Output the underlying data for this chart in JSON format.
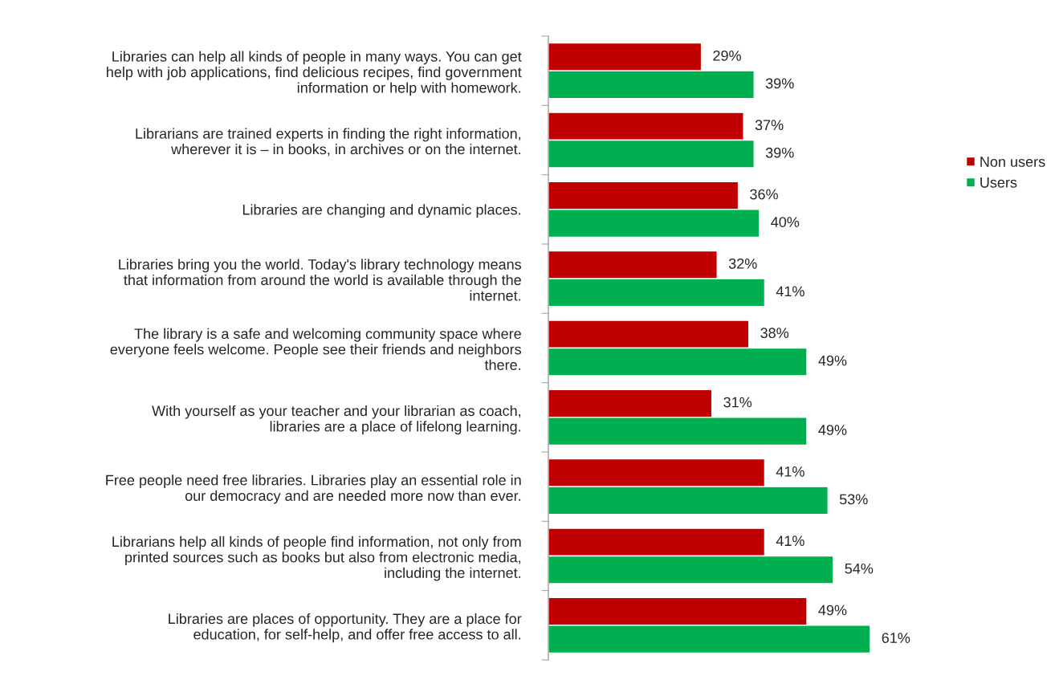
{
  "chart_data": {
    "type": "bar",
    "orientation": "horizontal",
    "legend": "right",
    "grid": false,
    "categories": [
      "Libraries can help all kinds of people in many ways. You can get\nhelp with job applications, find delicious recipes, find government\ninformation or help with homework.",
      "Librarians are trained experts in finding the right information,\nwherever it is – in books, in archives or on the internet.",
      "Libraries are changing and dynamic places.",
      "Libraries bring you the world. Today's library technology means\nthat information from around the world is available through the\ninternet.",
      "The library is a safe and welcoming community space where\neveryone feels welcome. People see their friends and neighbors\nthere.",
      "With yourself as your teacher and your librarian as coach,\nlibraries are a place of lifelong learning.",
      "Free people need free libraries. Libraries play an essential role in\nour democracy and are needed more now than ever.",
      "Librarians help all kinds of people find information, not only from\nprinted sources such as books but also from electronic media,\nincluding the internet.",
      "Libraries are places of opportunity. They are a place for\neducation, for self-help, and offer free access to all."
    ],
    "series": [
      {
        "name": "Non users",
        "color": "#c00000",
        "values": [
          29,
          37,
          36,
          32,
          38,
          31,
          41,
          41,
          49
        ],
        "value_labels": [
          "29%",
          "37%",
          "36%",
          "32%",
          "38%",
          "31%",
          "41%",
          "41%",
          "49%"
        ]
      },
      {
        "name": "Users",
        "color": "#00b050",
        "values": [
          39,
          39,
          40,
          41,
          49,
          49,
          53,
          54,
          61
        ],
        "value_labels": [
          "39%",
          "39%",
          "40%",
          "41%",
          "49%",
          "49%",
          "53%",
          "54%",
          "61%"
        ]
      }
    ]
  }
}
